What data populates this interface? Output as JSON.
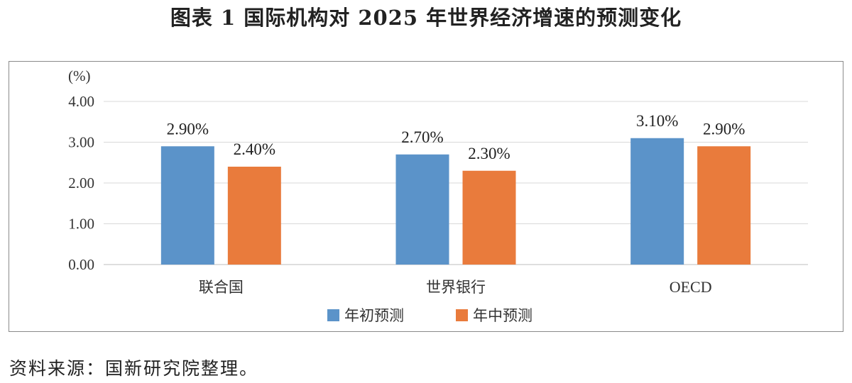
{
  "page": {
    "title": "图表 1  国际机构对 2025 年世界经济增速的预测变化",
    "source": "资料来源：国新研究院整理。"
  },
  "chart_data": {
    "type": "bar",
    "title": "图表 1  国际机构对 2025 年世界经济增速的预测变化",
    "ylabel": "(%)",
    "xlabel": "",
    "ylim": [
      0,
      4
    ],
    "yticks": [
      "0.00",
      "1.00",
      "2.00",
      "3.00",
      "4.00"
    ],
    "categories": [
      "联合国",
      "世界银行",
      "OECD"
    ],
    "series": [
      {
        "name": "年初预测",
        "values": [
          2.9,
          2.7,
          3.1
        ],
        "labels": [
          "2.90%",
          "2.70%",
          "3.10%"
        ],
        "color": "#5b93c9"
      },
      {
        "name": "年中预测",
        "values": [
          2.4,
          2.3,
          2.9
        ],
        "labels": [
          "2.40%",
          "2.30%",
          "2.90%"
        ],
        "color": "#e97b3c"
      }
    ],
    "grid": true,
    "legend": "bottom"
  }
}
